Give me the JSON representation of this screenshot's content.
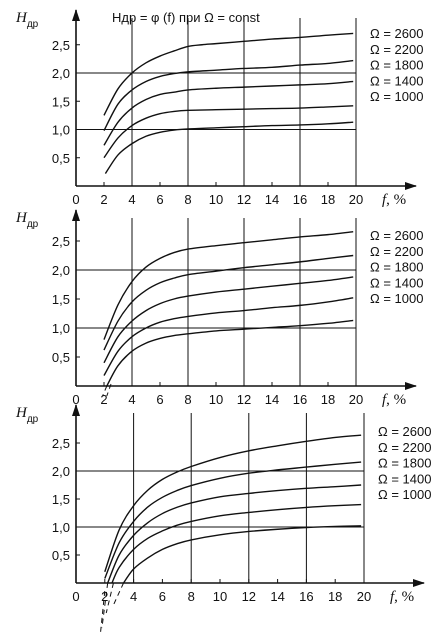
{
  "figure": {
    "title": "Hдр = φ (f) при Ω = const"
  },
  "chart_data": [
    {
      "type": "line",
      "title": "Hдр = φ (f) при Ω = const",
      "ylabel": "Hдр",
      "xlabel": "f, %",
      "x_ticks": [
        "0",
        "2",
        "4",
        "6",
        "8",
        "10",
        "12",
        "14",
        "16",
        "18",
        "20"
      ],
      "y_ticks": [
        "0,5",
        "1,0",
        "1,5",
        "2,0",
        "2,5"
      ],
      "xlim": [
        0,
        20
      ],
      "ylim": [
        0,
        2.9
      ],
      "grid": "vertical lines at 4, 8, 12, 16, 20; horizontal lines at 1,0 and 2,0",
      "legend_position": "right",
      "series": [
        {
          "name": "Ω = 2600",
          "x": [
            2,
            3,
            4,
            5,
            6,
            7,
            8,
            9,
            10,
            12,
            14,
            16,
            18,
            19.8
          ],
          "y": [
            1.25,
            1.72,
            2.0,
            2.18,
            2.3,
            2.39,
            2.47,
            2.5,
            2.52,
            2.56,
            2.6,
            2.63,
            2.67,
            2.7
          ]
        },
        {
          "name": "Ω = 2200",
          "x": [
            2,
            3,
            4,
            5,
            6,
            7,
            8,
            10,
            12,
            14,
            16,
            18,
            19.8
          ],
          "y": [
            0.98,
            1.45,
            1.7,
            1.85,
            1.94,
            1.99,
            2.02,
            2.05,
            2.08,
            2.1,
            2.14,
            2.17,
            2.22
          ]
        },
        {
          "name": "Ω = 1800",
          "x": [
            2,
            3,
            4,
            5,
            6,
            7,
            8,
            10,
            12,
            14,
            16,
            18,
            19.8
          ],
          "y": [
            0.72,
            1.13,
            1.38,
            1.53,
            1.62,
            1.66,
            1.7,
            1.73,
            1.75,
            1.77,
            1.79,
            1.81,
            1.85
          ]
        },
        {
          "name": "Ω = 1400",
          "x": [
            2,
            3,
            4,
            5,
            6,
            7,
            8,
            10,
            12,
            14,
            16,
            18,
            19.8
          ],
          "y": [
            0.5,
            0.85,
            1.07,
            1.2,
            1.28,
            1.32,
            1.34,
            1.35,
            1.36,
            1.37,
            1.38,
            1.4,
            1.42
          ]
        },
        {
          "name": "Ω = 1000",
          "x": [
            2.1,
            3,
            4,
            5,
            6,
            7,
            8,
            10,
            12,
            14,
            16,
            18,
            19.8
          ],
          "y": [
            0.22,
            0.55,
            0.75,
            0.88,
            0.95,
            0.99,
            1.01,
            1.03,
            1.05,
            1.07,
            1.08,
            1.1,
            1.13
          ]
        }
      ]
    },
    {
      "type": "line",
      "ylabel": "Hдр",
      "xlabel": "f, %",
      "x_ticks": [
        "0",
        "2",
        "4",
        "6",
        "8",
        "10",
        "12",
        "14",
        "16",
        "18",
        "20"
      ],
      "y_ticks": [
        "0,5",
        "1,0",
        "1,5",
        "2,0",
        "2,5"
      ],
      "xlim": [
        0,
        20
      ],
      "ylim": [
        0,
        2.9
      ],
      "grid": "vertical lines at 4, 8, 12, 16, 20; horizontal lines at 1,0 and 2,0",
      "legend_position": "right",
      "series": [
        {
          "name": "Ω = 2600",
          "x": [
            2,
            3,
            4,
            5,
            6,
            7,
            8,
            10,
            12,
            14,
            16,
            18,
            19.8
          ],
          "y": [
            0.8,
            1.4,
            1.8,
            2.05,
            2.2,
            2.3,
            2.36,
            2.42,
            2.47,
            2.52,
            2.57,
            2.61,
            2.66
          ]
        },
        {
          "name": "Ω = 2200",
          "x": [
            2,
            3,
            4,
            5,
            6,
            7,
            8,
            10,
            12,
            14,
            16,
            18,
            19.8
          ],
          "y": [
            0.62,
            1.12,
            1.45,
            1.65,
            1.78,
            1.86,
            1.92,
            1.98,
            2.04,
            2.09,
            2.14,
            2.2,
            2.25
          ]
        },
        {
          "name": "Ω = 1800",
          "x": [
            2,
            3,
            4,
            5,
            6,
            7,
            8,
            10,
            12,
            14,
            16,
            18,
            19.8
          ],
          "y": [
            0.4,
            0.85,
            1.12,
            1.3,
            1.42,
            1.5,
            1.55,
            1.62,
            1.67,
            1.72,
            1.77,
            1.82,
            1.88
          ]
        },
        {
          "name": "Ω = 1400",
          "x": [
            2,
            3,
            4,
            5,
            6,
            7,
            8,
            10,
            12,
            14,
            16,
            18,
            19.8
          ],
          "y": [
            0.18,
            0.6,
            0.85,
            1.0,
            1.1,
            1.16,
            1.2,
            1.26,
            1.3,
            1.35,
            1.39,
            1.45,
            1.52
          ]
        },
        {
          "name": "Ω = 1000",
          "x": [
            2.2,
            3,
            4,
            5,
            6,
            7,
            8,
            10,
            12,
            14,
            16,
            18,
            19.8
          ],
          "y": [
            0.0,
            0.35,
            0.6,
            0.74,
            0.82,
            0.87,
            0.9,
            0.95,
            0.98,
            1.01,
            1.04,
            1.08,
            1.13
          ]
        }
      ]
    },
    {
      "type": "line",
      "ylabel": "Hдр",
      "xlabel": "f, %",
      "x_ticks": [
        "0",
        "2",
        "4",
        "6",
        "8",
        "10",
        "12",
        "14",
        "16",
        "18",
        "20"
      ],
      "y_ticks": [
        "0,5",
        "1,0",
        "1,5",
        "2,0",
        "2,5"
      ],
      "xlim": [
        0,
        20
      ],
      "ylim": [
        0,
        2.9
      ],
      "grid": "vertical lines at 4, 8, 12, 16, 20; horizontal lines at 1,0 and 2,0",
      "legend_position": "right",
      "series": [
        {
          "name": "Ω = 2600",
          "x": [
            2,
            3,
            4,
            5,
            6,
            7,
            8,
            10,
            12,
            14,
            16,
            18,
            19.8
          ],
          "y": [
            0.2,
            0.95,
            1.38,
            1.66,
            1.85,
            1.98,
            2.08,
            2.24,
            2.36,
            2.45,
            2.53,
            2.6,
            2.64
          ]
        },
        {
          "name": "Ω = 2200",
          "x": [
            2,
            3,
            4,
            5,
            6,
            7,
            8,
            10,
            12,
            14,
            16,
            18,
            19.8
          ],
          "y": [
            0.08,
            0.72,
            1.1,
            1.36,
            1.53,
            1.65,
            1.74,
            1.87,
            1.96,
            2.02,
            2.07,
            2.12,
            2.16
          ]
        },
        {
          "name": "Ω = 1800",
          "x": [
            2.2,
            3,
            4,
            5,
            6,
            7,
            8,
            10,
            12,
            14,
            16,
            18,
            19.8
          ],
          "y": [
            0.0,
            0.5,
            0.85,
            1.08,
            1.24,
            1.35,
            1.43,
            1.54,
            1.6,
            1.65,
            1.69,
            1.72,
            1.75
          ]
        },
        {
          "name": "Ω = 1400",
          "x": [
            2.5,
            3,
            4,
            5,
            6,
            7,
            8,
            10,
            12,
            14,
            16,
            18,
            19.8
          ],
          "y": [
            0.0,
            0.28,
            0.6,
            0.8,
            0.93,
            1.03,
            1.1,
            1.2,
            1.26,
            1.31,
            1.35,
            1.38,
            1.4
          ]
        },
        {
          "name": "Ω = 1000",
          "x": [
            3.3,
            4,
            5,
            6,
            7,
            8,
            10,
            12,
            14,
            16,
            18,
            19.8
          ],
          "y": [
            0.0,
            0.25,
            0.45,
            0.6,
            0.7,
            0.77,
            0.86,
            0.92,
            0.96,
            0.99,
            1.01,
            1.02
          ]
        }
      ]
    }
  ]
}
